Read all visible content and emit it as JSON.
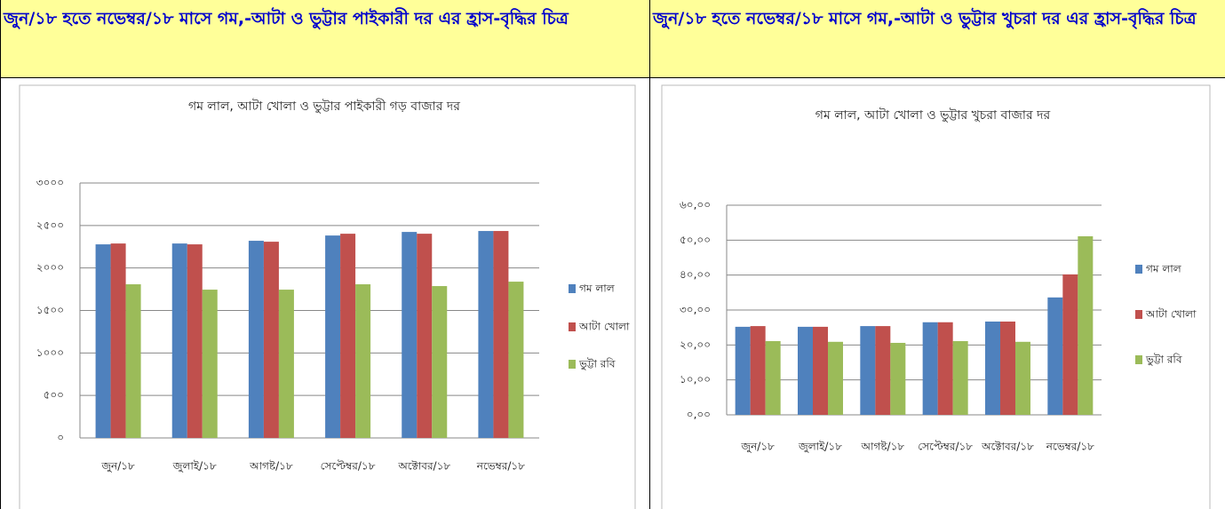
{
  "headers": [
    "জুন/১৮ হতে নভেম্বর/১৮ মাসে গম,-আটা ও ভুট্টার পাইকারী দর এর হ্রাস-বৃদ্ধির চিত্র",
    "জুন/১৮ হতে নভেম্বর/১৮ মাসে গম,-আটা ও ভুট্টার  খুচরা দর এর হ্রাস-বৃদ্ধির চিত্র"
  ],
  "chart_data": [
    {
      "type": "bar",
      "title": "গম লাল, আটা খোলা ও ভুট্টার পাইকারী গড় বাজার দর",
      "categories": [
        "জুন/১৮",
        "জুলাই/১৮",
        "আগষ্ট/১৮",
        "সেপ্টেম্বর/১৮",
        "অক্টোবর/১৮",
        "নভেম্বর/১৮"
      ],
      "series": [
        {
          "name": "গম লাল",
          "color": "#4f81bd",
          "values": [
            2278,
            2288,
            2320,
            2382,
            2424,
            2435
          ]
        },
        {
          "name": "আটা খোলা",
          "color": "#c0504d",
          "values": [
            2288,
            2278,
            2309,
            2403,
            2403,
            2435
          ]
        },
        {
          "name": "ভুট্টা রবি",
          "color": "#9bbb59",
          "values": [
            1808,
            1745,
            1745,
            1808,
            1787,
            1839
          ]
        }
      ],
      "ylim": [
        0,
        3000
      ],
      "yticks": [
        {
          "value": 0,
          "label": "০"
        },
        {
          "value": 500,
          "label": "৫০০"
        },
        {
          "value": 1000,
          "label": "১০০০"
        },
        {
          "value": 1500,
          "label": "১৫০০"
        },
        {
          "value": 2000,
          "label": "২০০০"
        },
        {
          "value": 2500,
          "label": "২৫০০"
        },
        {
          "value": 3000,
          "label": "৩০০০"
        }
      ],
      "grid": true,
      "legend": "right"
    },
    {
      "type": "bar",
      "title": "গম লাল, আটা খোলা ও ভুট্টার খুচরা বাজার দর",
      "categories": [
        "জুন/১৮",
        "জুলাই/১৮",
        "আগষ্ট/১৮",
        "সেপ্টেম্বর/১৮",
        "অক্টোবর/১৮",
        "নভেম্বর/১৮"
      ],
      "series": [
        {
          "name": "গম লাল",
          "color": "#4f81bd",
          "values": [
            25.2,
            25.2,
            25.4,
            26.5,
            26.7,
            33.6
          ]
        },
        {
          "name": "আটা খোলা",
          "color": "#c0504d",
          "values": [
            25.4,
            25.2,
            25.4,
            26.5,
            26.7,
            40.2
          ]
        },
        {
          "name": "ভুট্টা রবি",
          "color": "#9bbb59",
          "values": [
            21.1,
            20.9,
            20.6,
            21.1,
            20.9,
            51.1
          ]
        }
      ],
      "ylim": [
        0,
        60
      ],
      "yticks": [
        {
          "value": 0,
          "label": "০,০০"
        },
        {
          "value": 10,
          "label": "১০,০০"
        },
        {
          "value": 20,
          "label": "২০,০০"
        },
        {
          "value": 30,
          "label": "৩০,০০"
        },
        {
          "value": 40,
          "label": "৪০,০০"
        },
        {
          "value": 50,
          "label": "৫০,০০"
        },
        {
          "value": 60,
          "label": "৬০,০০"
        }
      ],
      "grid": true,
      "legend": "right"
    }
  ]
}
